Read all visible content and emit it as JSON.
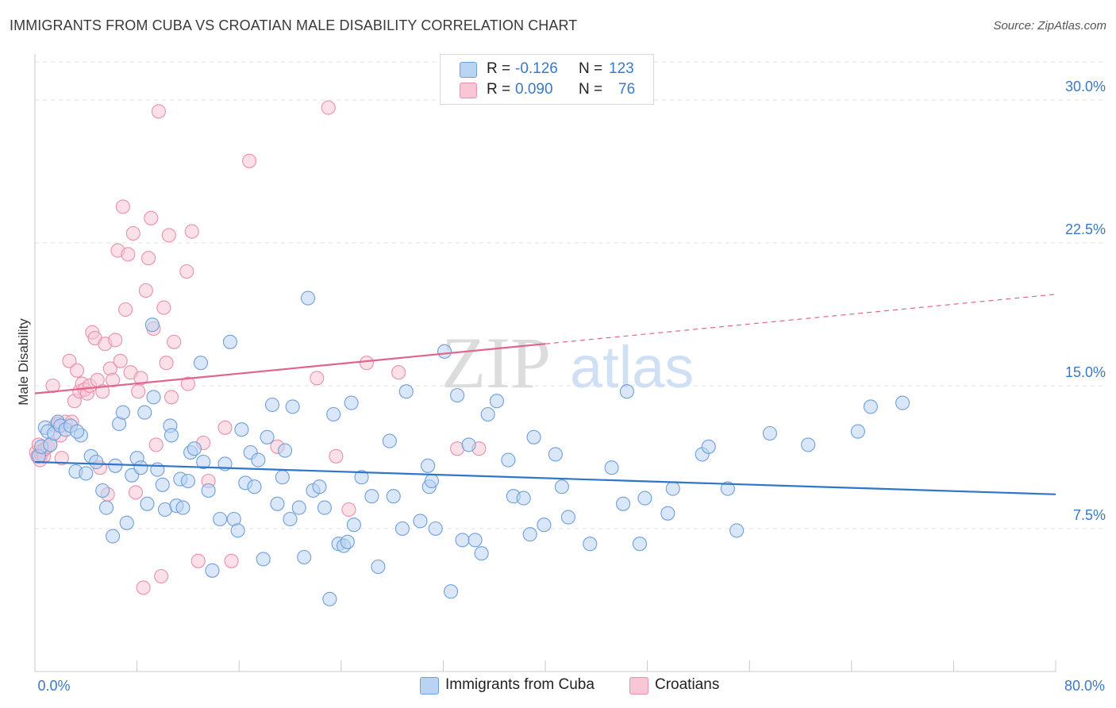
{
  "title": "IMMIGRANTS FROM CUBA VS CROATIAN MALE DISABILITY CORRELATION CHART",
  "source": "Source: ZipAtlas.com",
  "watermark": {
    "zip": "ZIP",
    "atlas": "atlas"
  },
  "legend": {
    "rows": [
      {
        "r_label": "R =",
        "r_value": "-0.126",
        "n_label": "N =",
        "n_value": "123"
      },
      {
        "r_label": "R =",
        "r_value": "0.090",
        "n_label": "N =",
        "n_value": "76"
      }
    ]
  },
  "bottom_legend": {
    "series_a": "Immigrants from Cuba",
    "series_b": "Croatians"
  },
  "colors": {
    "blue_fill": "#b9d3f2",
    "blue_stroke": "#6e9fdb",
    "blue_line": "#2f75cc",
    "pink_fill": "#f8c6d5",
    "pink_stroke": "#ea8fab",
    "pink_line": "#e0648f",
    "tick_label": "#3a78c9",
    "grid": "#e2e2e2"
  },
  "chart_data": {
    "type": "scatter",
    "title": "IMMIGRANTS FROM CUBA VS CROATIAN MALE DISABILITY CORRELATION CHART",
    "xlabel": "",
    "ylabel": "Male Disability",
    "xlim": [
      0,
      80
    ],
    "ylim": [
      0,
      32
    ],
    "x_tick_labels": [
      "0.0%",
      "80.0%"
    ],
    "y_ticks": [
      7.5,
      15.0,
      22.5,
      30.0
    ],
    "y_tick_labels": [
      "7.5%",
      "15.0%",
      "22.5%",
      "30.0%"
    ],
    "grid": "horizontal dashed",
    "legend_position": "top-center",
    "series": [
      {
        "name": "Immigrants from Cuba",
        "r": -0.126,
        "n": 123,
        "trend": {
          "x": [
            0,
            80
          ],
          "y": [
            11.0,
            9.3
          ],
          "dashed_from_x": null
        },
        "points": [
          [
            0.3,
            11.3
          ],
          [
            0.5,
            11.8
          ],
          [
            0.8,
            12.8
          ],
          [
            1.0,
            12.6
          ],
          [
            1.2,
            11.9
          ],
          [
            1.5,
            12.5
          ],
          [
            1.8,
            13.1
          ],
          [
            2.0,
            12.9
          ],
          [
            2.4,
            12.7
          ],
          [
            2.8,
            12.9
          ],
          [
            3.2,
            10.5
          ],
          [
            3.6,
            12.4
          ],
          [
            3.3,
            12.6
          ],
          [
            4.0,
            10.4
          ],
          [
            4.4,
            11.3
          ],
          [
            4.8,
            11.0
          ],
          [
            5.3,
            9.5
          ],
          [
            5.6,
            8.6
          ],
          [
            6.1,
            7.1
          ],
          [
            6.3,
            10.8
          ],
          [
            6.6,
            13.0
          ],
          [
            6.9,
            13.6
          ],
          [
            7.2,
            7.8
          ],
          [
            7.6,
            10.3
          ],
          [
            8.0,
            11.2
          ],
          [
            8.3,
            10.7
          ],
          [
            8.6,
            13.6
          ],
          [
            8.8,
            8.8
          ],
          [
            9.2,
            18.2
          ],
          [
            9.3,
            14.4
          ],
          [
            9.6,
            10.6
          ],
          [
            10.0,
            9.8
          ],
          [
            10.2,
            8.5
          ],
          [
            10.6,
            12.9
          ],
          [
            10.7,
            12.4
          ],
          [
            11.1,
            8.7
          ],
          [
            11.4,
            10.1
          ],
          [
            11.6,
            8.6
          ],
          [
            12.0,
            10.0
          ],
          [
            12.2,
            11.5
          ],
          [
            12.5,
            11.7
          ],
          [
            13.0,
            16.2
          ],
          [
            13.2,
            11.0
          ],
          [
            13.6,
            9.5
          ],
          [
            13.9,
            5.3
          ],
          [
            14.5,
            8.0
          ],
          [
            14.9,
            10.9
          ],
          [
            15.3,
            17.3
          ],
          [
            15.6,
            8.0
          ],
          [
            15.9,
            7.4
          ],
          [
            16.2,
            12.7
          ],
          [
            16.5,
            9.9
          ],
          [
            16.9,
            11.5
          ],
          [
            17.2,
            9.7
          ],
          [
            17.5,
            11.1
          ],
          [
            17.9,
            5.9
          ],
          [
            18.2,
            12.3
          ],
          [
            18.6,
            14.0
          ],
          [
            19.0,
            8.8
          ],
          [
            19.4,
            10.2
          ],
          [
            19.6,
            11.6
          ],
          [
            20.0,
            8.0
          ],
          [
            20.2,
            13.9
          ],
          [
            20.7,
            8.6
          ],
          [
            21.1,
            6.0
          ],
          [
            21.4,
            19.6
          ],
          [
            21.8,
            9.5
          ],
          [
            22.3,
            9.7
          ],
          [
            22.7,
            8.6
          ],
          [
            23.1,
            3.8
          ],
          [
            23.4,
            13.5
          ],
          [
            23.8,
            6.7
          ],
          [
            24.2,
            6.6
          ],
          [
            24.5,
            6.8
          ],
          [
            24.8,
            14.1
          ],
          [
            25.0,
            7.7
          ],
          [
            25.6,
            10.2
          ],
          [
            26.4,
            9.2
          ],
          [
            26.9,
            5.5
          ],
          [
            27.8,
            12.1
          ],
          [
            28.1,
            9.2
          ],
          [
            28.8,
            7.5
          ],
          [
            29.1,
            14.7
          ],
          [
            30.2,
            7.9
          ],
          [
            30.8,
            10.8
          ],
          [
            30.9,
            9.7
          ],
          [
            31.1,
            10.0
          ],
          [
            31.4,
            7.5
          ],
          [
            32.1,
            16.8
          ],
          [
            32.6,
            4.2
          ],
          [
            33.1,
            14.5
          ],
          [
            33.5,
            6.9
          ],
          [
            34.0,
            11.9
          ],
          [
            34.5,
            6.9
          ],
          [
            35.0,
            6.2
          ],
          [
            35.5,
            13.5
          ],
          [
            36.2,
            14.2
          ],
          [
            37.1,
            11.1
          ],
          [
            37.5,
            9.2
          ],
          [
            38.3,
            9.1
          ],
          [
            38.8,
            7.2
          ],
          [
            39.1,
            12.3
          ],
          [
            39.9,
            7.7
          ],
          [
            40.8,
            11.4
          ],
          [
            41.3,
            9.7
          ],
          [
            41.8,
            8.1
          ],
          [
            43.5,
            6.7
          ],
          [
            45.2,
            10.7
          ],
          [
            46.1,
            8.8
          ],
          [
            46.4,
            14.7
          ],
          [
            47.4,
            6.7
          ],
          [
            47.8,
            9.1
          ],
          [
            49.6,
            8.3
          ],
          [
            50.0,
            9.6
          ],
          [
            52.3,
            11.4
          ],
          [
            52.8,
            11.8
          ],
          [
            54.3,
            9.6
          ],
          [
            55.0,
            7.4
          ],
          [
            57.6,
            12.5
          ],
          [
            60.6,
            11.9
          ],
          [
            64.5,
            12.6
          ],
          [
            65.5,
            13.9
          ],
          [
            68.0,
            14.1
          ]
        ]
      },
      {
        "name": "Croatians",
        "r": 0.09,
        "n": 76,
        "trend": {
          "x": [
            0,
            80
          ],
          "y": [
            14.6,
            19.8
          ],
          "dashed_from_x": 40
        },
        "points": [
          [
            0.1,
            11.5
          ],
          [
            0.2,
            11.3
          ],
          [
            0.3,
            11.9
          ],
          [
            0.4,
            11.1
          ],
          [
            0.5,
            11.4
          ],
          [
            0.6,
            11.6
          ],
          [
            0.7,
            11.3
          ],
          [
            0.8,
            11.7
          ],
          [
            1.0,
            11.8
          ],
          [
            1.2,
            11.9
          ],
          [
            1.4,
            15.0
          ],
          [
            1.6,
            12.9
          ],
          [
            1.8,
            13.0
          ],
          [
            2.0,
            12.4
          ],
          [
            2.1,
            11.2
          ],
          [
            2.4,
            13.1
          ],
          [
            2.7,
            16.3
          ],
          [
            2.9,
            13.1
          ],
          [
            3.1,
            14.2
          ],
          [
            3.3,
            15.8
          ],
          [
            3.5,
            14.7
          ],
          [
            3.7,
            15.1
          ],
          [
            3.9,
            14.8
          ],
          [
            4.1,
            14.6
          ],
          [
            4.3,
            15.0
          ],
          [
            4.5,
            17.8
          ],
          [
            4.7,
            17.5
          ],
          [
            4.9,
            15.3
          ],
          [
            5.1,
            10.7
          ],
          [
            5.3,
            14.7
          ],
          [
            5.5,
            17.2
          ],
          [
            5.7,
            9.3
          ],
          [
            5.9,
            15.9
          ],
          [
            6.1,
            15.3
          ],
          [
            6.3,
            17.4
          ],
          [
            6.5,
            22.1
          ],
          [
            6.7,
            16.3
          ],
          [
            6.9,
            24.4
          ],
          [
            7.1,
            19.0
          ],
          [
            7.3,
            21.9
          ],
          [
            7.5,
            15.7
          ],
          [
            7.7,
            23.0
          ],
          [
            7.9,
            9.4
          ],
          [
            8.1,
            14.7
          ],
          [
            8.3,
            15.4
          ],
          [
            8.5,
            4.4
          ],
          [
            8.7,
            20.0
          ],
          [
            8.9,
            21.7
          ],
          [
            9.1,
            23.8
          ],
          [
            9.3,
            18.0
          ],
          [
            9.5,
            11.9
          ],
          [
            9.7,
            29.4
          ],
          [
            9.9,
            5.0
          ],
          [
            10.1,
            19.1
          ],
          [
            10.3,
            16.2
          ],
          [
            10.5,
            22.9
          ],
          [
            10.7,
            14.4
          ],
          [
            10.9,
            17.3
          ],
          [
            11.9,
            21.0
          ],
          [
            12.0,
            15.1
          ],
          [
            12.3,
            23.1
          ],
          [
            12.8,
            5.8
          ],
          [
            13.2,
            12.0
          ],
          [
            13.6,
            10.0
          ],
          [
            14.9,
            12.8
          ],
          [
            15.4,
            5.8
          ],
          [
            16.8,
            26.8
          ],
          [
            19.0,
            11.8
          ],
          [
            22.1,
            15.4
          ],
          [
            23.0,
            29.6
          ],
          [
            23.6,
            11.3
          ],
          [
            24.6,
            8.5
          ],
          [
            26.0,
            16.2
          ],
          [
            28.5,
            15.7
          ],
          [
            33.1,
            11.7
          ],
          [
            34.8,
            11.7
          ]
        ]
      }
    ]
  }
}
